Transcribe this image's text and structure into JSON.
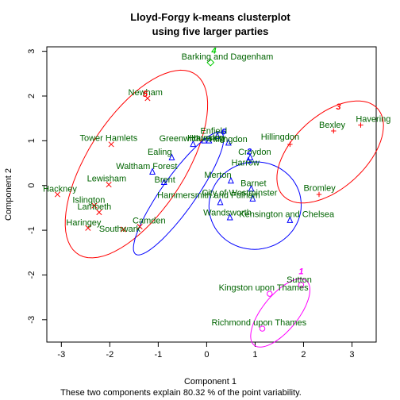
{
  "chart_data": {
    "type": "scatter",
    "title_line1": "Lloyd-Forgy k-means clusterplot",
    "title_line2": "using five larger parties",
    "xlabel": "Component 1",
    "ylabel": "Component 2",
    "footer": "These two components explain 80.32 % of the point variability.",
    "xlim": [
      -3.3,
      3.5
    ],
    "ylim": [
      -3.5,
      3.1
    ],
    "xticks": [
      -3,
      -2,
      -1,
      0,
      1,
      2,
      3
    ],
    "yticks": [
      -3,
      -2,
      -1,
      0,
      1,
      2,
      3
    ],
    "grid": false,
    "legend": "none",
    "clusters": [
      {
        "id": "1",
        "color": "#FF00FF",
        "label_pos": [
          1.95,
          -1.98
        ],
        "ellipse": {
          "cx": 1.52,
          "cy": -2.85,
          "rx": 0.9,
          "ry": 0.38,
          "angle": 54
        }
      },
      {
        "id": "2",
        "color": "#0000FF",
        "label_pos": [
          0.88,
          0.7
        ],
        "ellipse": {
          "cx": 1.0,
          "cy": -0.45,
          "rx": 0.95,
          "ry": 0.98,
          "angle": -15
        }
      },
      {
        "id": "3",
        "color": "#FF0000",
        "label_pos": [
          2.72,
          1.7
        ],
        "ellipse": {
          "cx": 2.55,
          "cy": 0.75,
          "rx": 1.38,
          "ry": 0.78,
          "angle": 47
        }
      },
      {
        "id": "4",
        "color": "#00CD00",
        "label_pos": [
          0.15,
          2.95
        ],
        "ellipse": null
      },
      {
        "id": "5",
        "color": "#FF0000",
        "label_pos": [
          -1.27,
          1.98
        ],
        "ellipse": {
          "cx": -1.45,
          "cy": 0.48,
          "rx": 2.35,
          "ry": 1.02,
          "angle": 60
        }
      },
      {
        "id": "6",
        "color": "#0000FF",
        "label_pos": [
          0.35,
          1.14
        ],
        "ellipse": {
          "cx": -0.58,
          "cy": -0.18,
          "rx": 1.62,
          "ry": 0.36,
          "angle": 57
        }
      }
    ],
    "points": [
      {
        "name": "Barking and Dagenham",
        "x": 0.08,
        "y": 2.75,
        "cluster": "4",
        "sym": "diamond",
        "label_dx": -0.6,
        "label_dy": 0.07
      },
      {
        "name": "Newham",
        "x": -1.22,
        "y": 1.95,
        "cluster": "5",
        "sym": "x",
        "label_dx": -0.4,
        "label_dy": 0.07
      },
      {
        "name": "Havering",
        "x": 3.18,
        "y": 1.35,
        "cluster": "3",
        "sym": "plus",
        "label_dx": -0.1,
        "label_dy": 0.07
      },
      {
        "name": "Bexley",
        "x": 2.62,
        "y": 1.22,
        "cluster": "3",
        "sym": "plus",
        "label_dx": -0.3,
        "label_dy": 0.07
      },
      {
        "name": "Hillingdon",
        "x": 1.72,
        "y": 0.92,
        "cluster": "3",
        "sym": "plus",
        "label_dx": -0.6,
        "label_dy": 0.1
      },
      {
        "name": "Bromley",
        "x": 2.32,
        "y": -0.2,
        "cluster": "3",
        "sym": "plus",
        "label_dx": -0.32,
        "label_dy": 0.08
      },
      {
        "name": "Enfield",
        "x": 0.22,
        "y": 1.1,
        "cluster": "6",
        "sym": "triangle",
        "label_dx": -0.35,
        "label_dy": 0.06
      },
      {
        "name": "Havering",
        "x": 0.05,
        "y": 1.0,
        "cluster": "6",
        "sym": "triangle",
        "label_dx": -0.4,
        "label_dy": 0.0
      },
      {
        "name": "Hounslow",
        "x": -0.05,
        "y": 1.0,
        "cluster": "6",
        "sym": "triangle",
        "label_dx": -0.35,
        "label_dy": 0.0
      },
      {
        "name": "Greenwich",
        "x": -0.28,
        "y": 0.92,
        "cluster": "6",
        "sym": "triangle",
        "label_dx": -0.7,
        "label_dy": 0.07
      },
      {
        "name": "Hillingdon",
        "x": 0.45,
        "y": 0.95,
        "cluster": "6",
        "sym": "triangle",
        "label_dx": -0.4,
        "label_dy": 0.02
      },
      {
        "name": "Ealing",
        "x": -0.72,
        "y": 0.62,
        "cluster": "6",
        "sym": "triangle",
        "label_dx": -0.5,
        "label_dy": 0.07
      },
      {
        "name": "Waltham Forest",
        "x": -1.12,
        "y": 0.3,
        "cluster": "6",
        "sym": "triangle",
        "label_dx": -0.75,
        "label_dy": 0.07
      },
      {
        "name": "Brent",
        "x": -0.88,
        "y": 0.07,
        "cluster": "6",
        "sym": "triangle",
        "label_dx": -0.2,
        "label_dy": 0.0
      },
      {
        "name": "Hammersmith and Fulham",
        "x": 0.28,
        "y": -0.38,
        "cluster": "6",
        "sym": "triangle",
        "label_dx": -1.3,
        "label_dy": 0.1
      },
      {
        "name": "Croydon",
        "x": 0.9,
        "y": 0.62,
        "cluster": "2",
        "sym": "triangle",
        "label_dx": -0.25,
        "label_dy": 0.07
      },
      {
        "name": "Harrow",
        "x": 0.86,
        "y": 0.55,
        "cluster": "2",
        "sym": "triangle",
        "label_dx": -0.35,
        "label_dy": -0.1
      },
      {
        "name": "Merton",
        "x": 0.5,
        "y": 0.1,
        "cluster": "2",
        "sym": "triangle",
        "label_dx": -0.55,
        "label_dy": 0.07
      },
      {
        "name": "Barnet",
        "x": 0.92,
        "y": -0.08,
        "cluster": "2",
        "sym": "triangle",
        "label_dx": -0.22,
        "label_dy": 0.07
      },
      {
        "name": "City of Westminster",
        "x": 0.95,
        "y": -0.3,
        "cluster": "2",
        "sym": "triangle",
        "label_dx": -1.05,
        "label_dy": 0.07
      },
      {
        "name": "Wandsworth",
        "x": 0.48,
        "y": -0.72,
        "cluster": "2",
        "sym": "triangle",
        "label_dx": -0.55,
        "label_dy": 0.05
      },
      {
        "name": "Kensington and Chelsea",
        "x": 1.72,
        "y": -0.78,
        "cluster": "2",
        "sym": "triangle",
        "label_dx": -1.05,
        "label_dy": 0.07
      },
      {
        "name": "Tower Hamlets",
        "x": -1.97,
        "y": 0.92,
        "cluster": "5",
        "sym": "x",
        "label_dx": -0.65,
        "label_dy": 0.08
      },
      {
        "name": "Lewisham",
        "x": -2.02,
        "y": 0.02,
        "cluster": "5",
        "sym": "x",
        "label_dx": -0.45,
        "label_dy": 0.07
      },
      {
        "name": "Hackney",
        "x": -3.08,
        "y": -0.2,
        "cluster": "5",
        "sym": "x",
        "label_dx": -0.3,
        "label_dy": 0.06
      },
      {
        "name": "Islington",
        "x": -2.32,
        "y": -0.45,
        "cluster": "5",
        "sym": "x",
        "label_dx": -0.45,
        "label_dy": 0.06
      },
      {
        "name": "Lambeth",
        "x": -2.22,
        "y": -0.6,
        "cluster": "5",
        "sym": "x",
        "label_dx": -0.45,
        "label_dy": 0.06
      },
      {
        "name": "Haringey",
        "x": -2.45,
        "y": -0.95,
        "cluster": "5",
        "sym": "x",
        "label_dx": -0.45,
        "label_dy": 0.06
      },
      {
        "name": "Southwark",
        "x": -1.72,
        "y": -0.98,
        "cluster": "5",
        "sym": "x",
        "label_dx": -0.5,
        "label_dy": -0.05
      },
      {
        "name": "Camden",
        "x": -1.38,
        "y": -0.92,
        "cluster": "5",
        "sym": "x",
        "label_dx": -0.15,
        "label_dy": 0.07
      },
      {
        "name": "Sutton",
        "x": 1.95,
        "y": -2.22,
        "cluster": "1",
        "sym": "circle",
        "label_dx": -0.3,
        "label_dy": 0.05
      },
      {
        "name": "Kingston upon Thames",
        "x": 1.3,
        "y": -2.42,
        "cluster": "1",
        "sym": "circle",
        "label_dx": -1.05,
        "label_dy": 0.07
      },
      {
        "name": "Richmond upon Thames",
        "x": 1.15,
        "y": -3.2,
        "cluster": "1",
        "sym": "circle",
        "label_dx": -1.05,
        "label_dy": 0.07
      }
    ]
  }
}
